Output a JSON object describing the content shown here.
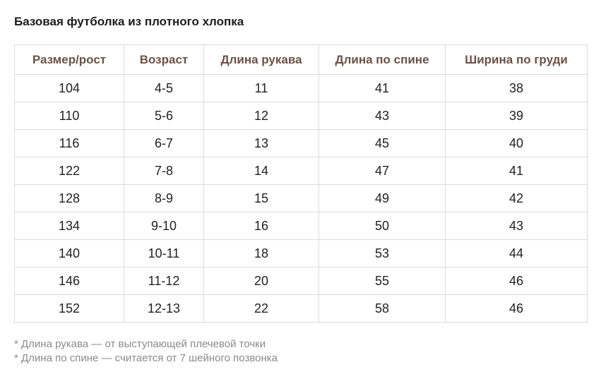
{
  "title": "Базовая футболка из плотного хлопка",
  "table": {
    "headers": [
      "Размер/рост",
      "Возраст",
      "Длина рукава",
      "Длина по спине",
      "Ширина по груди"
    ],
    "rows": [
      [
        "104",
        "4-5",
        "11",
        "41",
        "38"
      ],
      [
        "110",
        "5-6",
        "12",
        "43",
        "39"
      ],
      [
        "116",
        "6-7",
        "13",
        "45",
        "40"
      ],
      [
        "122",
        "7-8",
        "14",
        "47",
        "41"
      ],
      [
        "128",
        "8-9",
        "15",
        "49",
        "42"
      ],
      [
        "134",
        "9-10",
        "16",
        "50",
        "43"
      ],
      [
        "140",
        "10-11",
        "18",
        "53",
        "44"
      ],
      [
        "146",
        "11-12",
        "20",
        "55",
        "46"
      ],
      [
        "152",
        "12-13",
        "22",
        "58",
        "46"
      ]
    ]
  },
  "notes": [
    "* Длина рукава — от выступающей плечевой точки",
    "* Длина по спине — считается от 7 шейного позвонка"
  ],
  "colors": {
    "header_text": "#6b5246",
    "border": "#dcdcdc",
    "note_text": "#8a8a8a"
  }
}
